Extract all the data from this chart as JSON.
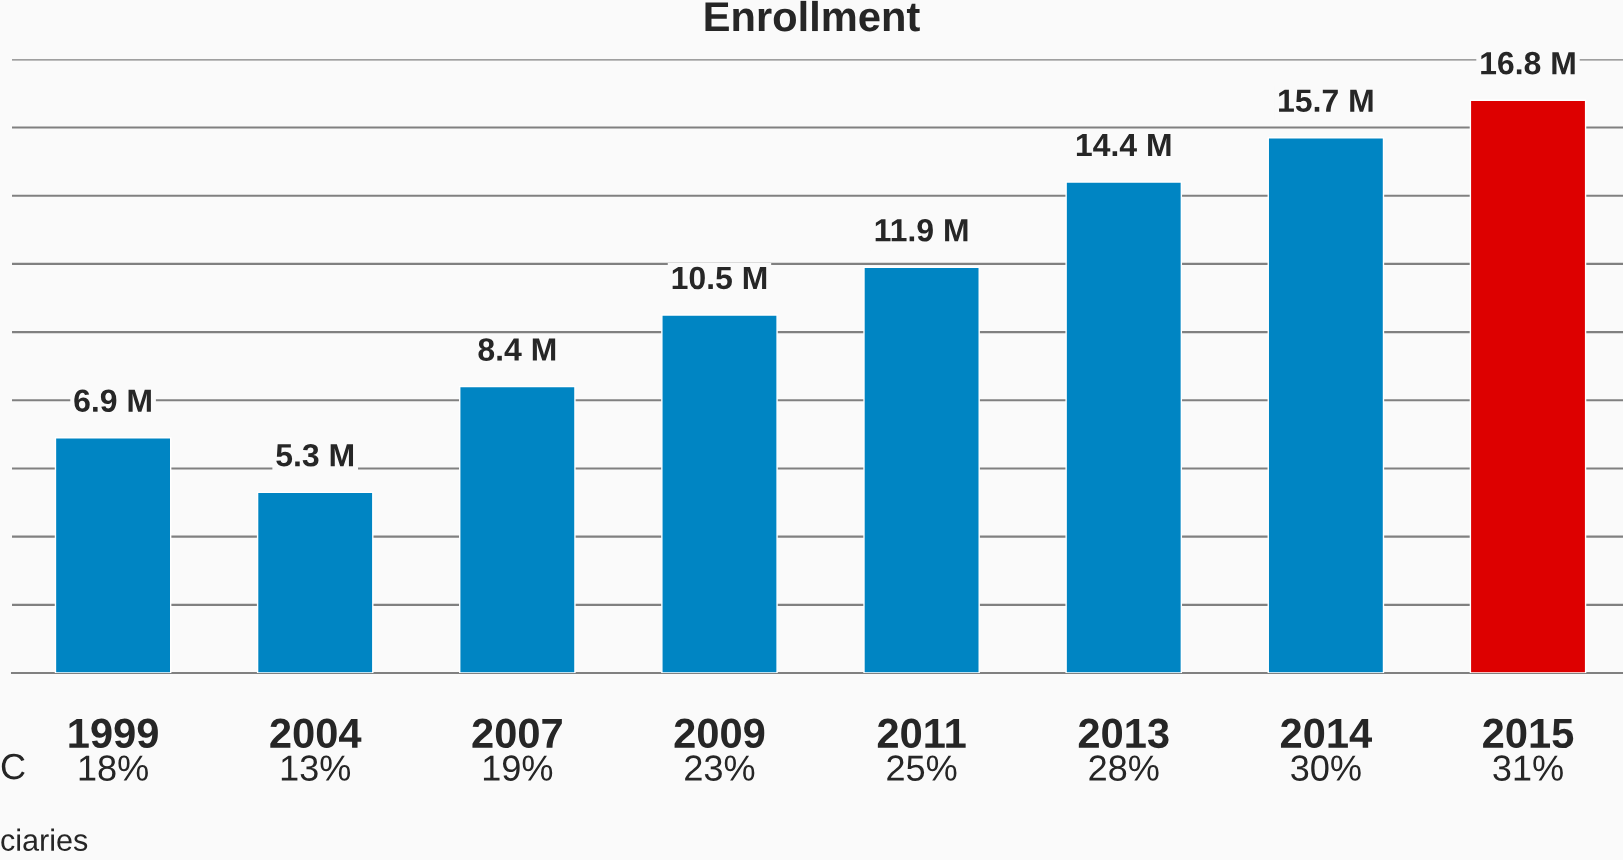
{
  "chart_data": {
    "type": "bar",
    "title": "Enrollment",
    "categories": [
      "1999",
      "2004",
      "2007",
      "2009",
      "2011",
      "2013",
      "2014",
      "2015"
    ],
    "values": [
      6.9,
      5.3,
      8.4,
      10.5,
      11.9,
      14.4,
      15.7,
      16.8
    ],
    "colors": [
      "#0085c3",
      "#0085c3",
      "#0085c3",
      "#0085c3",
      "#0085c3",
      "#0085c3",
      "#0085c3",
      "#dd0000"
    ],
    "value_labels": [
      "6.9 M",
      "5.3 M",
      "8.4 M",
      "10.5 M",
      "11.9 M",
      "14.4 M",
      "15.7 M",
      "16.8 M"
    ],
    "ylim": [
      0,
      18
    ],
    "yticks": [
      {
        "value": 0,
        "label": null
      },
      {
        "value": 2,
        "label": null
      },
      {
        "value": 4,
        "label": null
      },
      {
        "value": 6,
        "label": null
      },
      {
        "value": 8,
        "label": null
      },
      {
        "value": 10,
        "label": null
      },
      {
        "value": 12,
        "label": null
      },
      {
        "value": 14,
        "label": null
      },
      {
        "value": 16,
        "label": null
      },
      {
        "value": 18,
        "label": null
      }
    ],
    "tick_labels": "x",
    "grid": "y",
    "legend": false,
    "annotations": [
      "C",
      "18%",
      "13%",
      "19%",
      "23%",
      "25%",
      "28%",
      "30%",
      "31%",
      "ciaries"
    ]
  }
}
